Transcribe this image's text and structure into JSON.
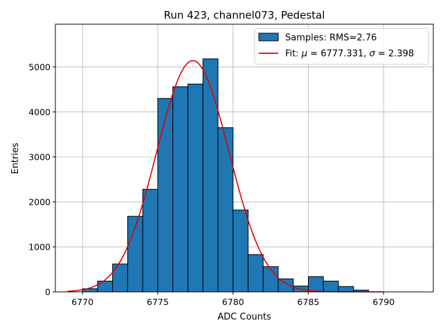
{
  "chart_data": {
    "type": "bar",
    "title": "Run 423, channel073, Pedestal",
    "xlabel": "ADC Counts",
    "ylabel": "Entries",
    "xlim": [
      6768.2,
      6793.3
    ],
    "ylim": [
      0,
      5950
    ],
    "xticks": [
      6770,
      6775,
      6780,
      6785,
      6790
    ],
    "yticks": [
      0,
      1000,
      2000,
      3000,
      4000,
      5000
    ],
    "grid": true,
    "legend_position": "top-right",
    "colors": {
      "bars": "#1f77b4",
      "bar_edge": "#000000",
      "fit": "#e00000"
    },
    "histogram": {
      "name": "Samples: RMS=2.76",
      "bin_width": 1,
      "bin_starts": [
        6770,
        6771,
        6772,
        6773,
        6774,
        6775,
        6776,
        6777,
        6778,
        6779,
        6780,
        6781,
        6782,
        6783,
        6784,
        6785,
        6786,
        6787,
        6788
      ],
      "values": [
        70,
        240,
        620,
        1680,
        2280,
        4300,
        4560,
        4620,
        5180,
        3650,
        1820,
        830,
        560,
        290,
        130,
        340,
        240,
        120,
        40
      ]
    },
    "fit": {
      "name": "Fit: μ = 6777.331, σ = 2.398",
      "label_prefix": "Fit: ",
      "mu_symbol": "μ",
      "mu_text": " = 6777.331, ",
      "sigma_symbol": "σ",
      "sigma_text": " = 2.398",
      "mu": 6777.331,
      "sigma": 2.398,
      "amplitude": 5140,
      "x_range": [
        6769,
        6790
      ]
    }
  }
}
